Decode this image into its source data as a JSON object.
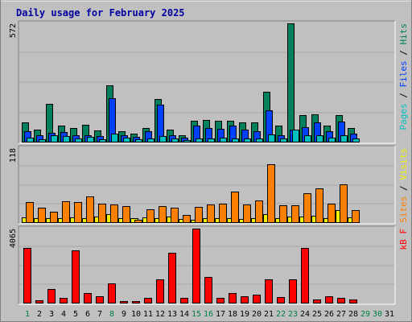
{
  "chart_data": {
    "type": "bar",
    "title": "Daily usage for February 2025",
    "categories": [
      "1",
      "2",
      "3",
      "4",
      "5",
      "6",
      "7",
      "8",
      "9",
      "10",
      "11",
      "12",
      "13",
      "14",
      "15",
      "16",
      "17",
      "18",
      "19",
      "20",
      "21",
      "22",
      "23",
      "24",
      "25",
      "26",
      "27",
      "28",
      "29",
      "30",
      "31"
    ],
    "weekend_days": [
      "1",
      "8",
      "15",
      "16",
      "22",
      "23",
      "29",
      "30"
    ],
    "panels": [
      {
        "id": "hits_panel",
        "ymax": 572,
        "ymax_label": "572",
        "legend": [
          {
            "text": "Pages",
            "color": "#00c0c0"
          },
          {
            "text": " / ",
            "color": "#000000"
          },
          {
            "text": "Files",
            "color": "#0040ff"
          },
          {
            "text": " / ",
            "color": "#000000"
          },
          {
            "text": "Hits",
            "color": "#00805c"
          }
        ],
        "series": [
          {
            "name": "Hits",
            "color": "#00805c",
            "values": [
              98,
              60,
              184,
              82,
              70,
              86,
              57,
              275,
              53,
              44,
              70,
              210,
              63,
              35,
              106,
              107,
              103,
              104,
              98,
              98,
              245,
              82,
              572,
              130,
              135,
              82,
              133,
              68,
              0,
              0,
              0
            ]
          },
          {
            "name": "Files",
            "color": "#0040ff",
            "values": [
              53,
              33,
              45,
              50,
              36,
              34,
              30,
              212,
              33,
              28,
              53,
              180,
              34,
              22,
              82,
              70,
              66,
              83,
              62,
              56,
              154,
              35,
              60,
              75,
              96,
              53,
              102,
              44,
              0,
              0,
              0
            ]
          },
          {
            "name": "Pages",
            "color": "#00c0c0",
            "values": [
              23,
              15,
              35,
              30,
              19,
              26,
              17,
              41,
              24,
              17,
              20,
              32,
              19,
              11,
              20,
              21,
              23,
              21,
              19,
              20,
              40,
              19,
              60,
              35,
              33,
              24,
              36,
              21,
              0,
              0,
              0
            ]
          }
        ]
      },
      {
        "id": "visits_panel",
        "ymax": 118,
        "ymax_label": "118",
        "legend": [
          {
            "text": "Sites",
            "color": "#ff8000"
          },
          {
            "text": " / ",
            "color": "#000000"
          },
          {
            "text": "Visits",
            "color": "#f0f000"
          }
        ],
        "series": [
          {
            "name": "Visits",
            "color": "#f0f000",
            "values": [
              9,
              7,
              8,
              8,
              9,
              8,
              10,
              14,
              7,
              7,
              9,
              8,
              10,
              6,
              5,
              8,
              8,
              7,
              6,
              7,
              14,
              8,
              10,
              10,
              12,
              7,
              20,
              9,
              0,
              0,
              0
            ]
          },
          {
            "name": "Sites",
            "color": "#ff8000",
            "values": [
              33,
              24,
              18,
              34,
              33,
              42,
              30,
              29,
              27,
              5,
              22,
              27,
              24,
              13,
              26,
              29,
              30,
              49,
              29,
              36,
              93,
              28,
              28,
              47,
              55,
              30,
              61,
              20,
              0,
              0,
              0
            ]
          }
        ]
      },
      {
        "id": "kbytes_panel",
        "ymax": 4065,
        "ymax_label": "4065",
        "legend": [
          {
            "text": "kB F",
            "color": "#ff0000"
          }
        ],
        "series": [
          {
            "name": "kB F",
            "color": "#ff0000",
            "values": [
              3000,
              160,
              800,
              300,
              2900,
              560,
              400,
              1090,
              150,
              140,
              300,
              1300,
              2750,
              300,
              4065,
              1430,
              290,
              590,
              380,
              470,
              1320,
              330,
              1330,
              3000,
              210,
              380,
              310,
              220,
              0,
              0,
              0
            ]
          }
        ]
      }
    ]
  },
  "colors": {
    "background": "#c0c0c0",
    "title": "#0000a0",
    "weekday_label": "#000000",
    "weekend_label": "#008040"
  }
}
